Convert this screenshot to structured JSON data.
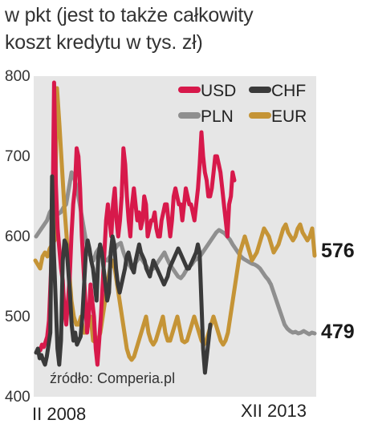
{
  "subtitle": "w pkt (jest to także całkowity\nkoszt kredytu w tys. zł)",
  "source": "źródło: Comperia.pl",
  "x_start_label": "II 2008",
  "x_end_label": "XII 2013",
  "end_labels": [
    "576",
    "479"
  ],
  "chart_data": {
    "type": "line",
    "ylim": [
      400,
      800
    ],
    "yticks": [
      800,
      700,
      600,
      500,
      400
    ],
    "x_start": "II 2008",
    "x_end": "XII 2013",
    "grid": false,
    "legend": "top-right",
    "series": [
      {
        "name": "USD",
        "color": "#d7194b",
        "values": [
          460,
          458,
          465,
          462,
          468,
          475,
          495,
          545,
          605,
          792,
          665,
          610,
          585,
          560,
          545,
          505,
          490,
          520,
          550,
          600,
          640,
          660,
          710,
          700,
          660,
          600,
          560,
          520,
          480,
          500,
          540,
          520,
          500,
          460,
          440,
          470,
          500,
          540,
          580,
          620,
          640,
          620,
          600,
          640,
          660,
          620,
          600,
          620,
          650,
          710,
          690,
          650,
          620,
          600,
          640,
          660,
          640,
          620,
          630,
          610,
          620,
          650,
          640,
          600,
          610,
          620,
          620,
          630,
          610,
          600,
          600,
          620,
          630,
          640,
          640,
          620,
          600,
          620,
          650,
          660,
          650,
          640,
          640,
          620,
          640,
          660,
          650,
          640,
          640,
          630,
          620,
          640,
          660,
          690,
          730,
          700,
          680,
          670,
          650,
          650,
          660,
          680,
          700,
          700,
          690,
          680,
          660,
          640,
          620,
          600,
          640,
          650,
          680,
          670
        ]
      },
      {
        "name": "CHF",
        "color": "#3a3a3a",
        "values": [
          455,
          460,
          448,
          452,
          445,
          440,
          450,
          465,
          480,
          675,
          580,
          520,
          460,
          440,
          470,
          570,
          595,
          590,
          560,
          530,
          490,
          470,
          480,
          465,
          470,
          475,
          500,
          540,
          580,
          595,
          585,
          570,
          560,
          540,
          520,
          575,
          590,
          580,
          560,
          540,
          520,
          530,
          580,
          600,
          590,
          560,
          540,
          530,
          540,
          550,
          560,
          575,
          580,
          570,
          560,
          555,
          570,
          580,
          590,
          580,
          575,
          570,
          560,
          555,
          550,
          560,
          570,
          565,
          560,
          555,
          550,
          545,
          540,
          545,
          550,
          560,
          565,
          570,
          575,
          580,
          585,
          580,
          575,
          570,
          565,
          560,
          560,
          565,
          570,
          575,
          580,
          590,
          580,
          520,
          460,
          430,
          450,
          470,
          490
        ]
      },
      {
        "name": "PLN",
        "color": "#8f8f8f",
        "values": [
          600,
          605,
          610,
          615,
          620,
          630,
          635,
          632,
          628,
          630,
          636,
          640,
          660,
          680,
          672,
          660,
          640,
          620,
          600,
          580,
          575,
          570,
          580,
          585,
          578,
          572,
          570,
          575,
          580,
          585,
          590,
          592,
          580,
          570,
          565,
          560,
          565,
          570,
          575,
          570,
          565,
          560,
          558,
          560,
          565,
          570,
          575,
          580,
          572,
          565,
          560,
          555,
          550,
          548,
          552,
          558,
          562,
          565,
          570,
          572,
          575,
          580,
          585,
          590,
          595,
          600,
          605,
          608,
          606,
          604,
          600,
          596,
          590,
          585,
          580,
          575,
          572,
          570,
          568,
          566,
          565,
          563,
          560,
          555,
          550,
          546,
          540,
          530,
          520,
          510,
          500,
          490,
          485,
          482,
          480,
          481,
          479,
          480,
          482,
          480,
          478,
          480,
          479
        ]
      },
      {
        "name": "EUR",
        "color": "#c59436",
        "values": [
          570,
          565,
          560,
          575,
          580,
          575,
          585,
          590,
          595,
          785,
          740,
          690,
          640,
          600,
          560,
          520,
          500,
          490,
          490,
          500,
          480,
          480,
          490,
          500,
          470,
          468,
          470,
          480,
          500,
          520,
          540,
          560,
          570,
          560,
          540,
          520,
          500,
          480,
          460,
          450,
          446,
          450,
          460,
          470,
          480,
          490,
          500,
          480,
          470,
          465,
          470,
          480,
          490,
          500,
          480,
          470,
          470,
          480,
          490,
          500,
          485,
          470,
          468,
          470,
          480,
          490,
          500,
          490,
          480,
          470,
          465,
          470,
          480,
          490,
          500,
          490,
          480,
          470,
          465,
          470,
          480,
          500,
          520,
          540,
          560,
          580,
          590,
          600,
          590,
          580,
          570,
          575,
          580,
          590,
          600,
          610,
          605,
          600,
          590,
          580,
          585,
          590,
          600,
          610,
          615,
          605,
          600,
          595,
          600,
          610,
          615,
          605,
          600,
          595,
          600,
          610,
          576
        ]
      }
    ]
  }
}
